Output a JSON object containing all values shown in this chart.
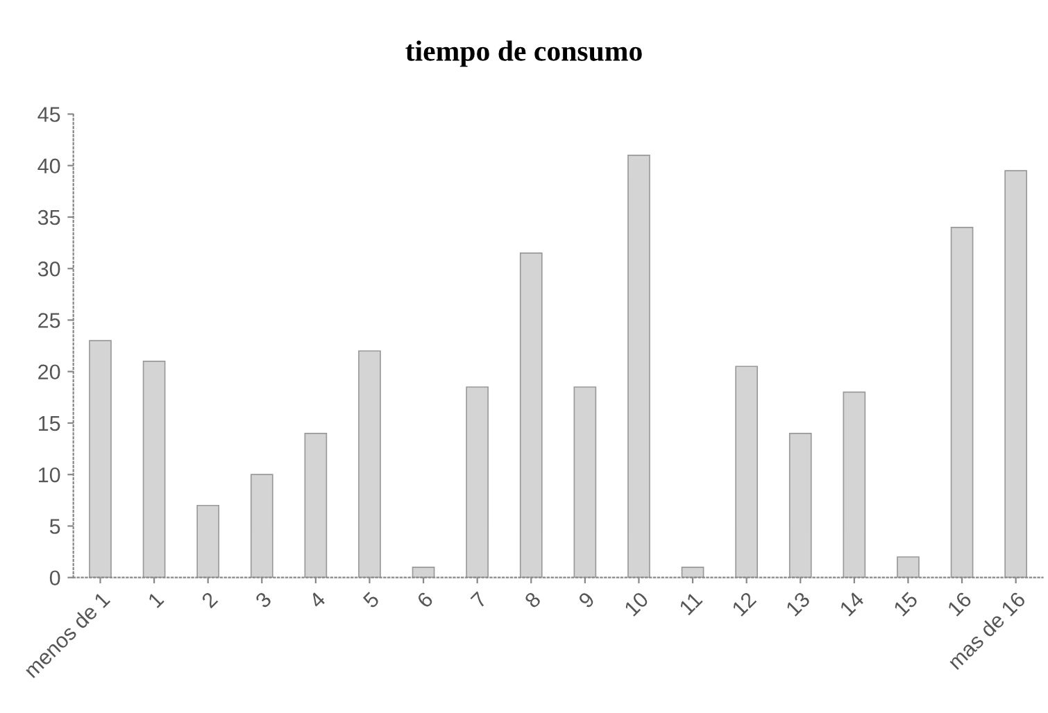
{
  "chart_data": {
    "type": "bar",
    "title": "tiempo de consumo",
    "categories": [
      "menos de 1",
      "1",
      "2",
      "3",
      "4",
      "5",
      "6",
      "7",
      "8",
      "9",
      "10",
      "11",
      "12",
      "13",
      "14",
      "15",
      "16",
      "mas de 16"
    ],
    "values": [
      23,
      21,
      7,
      10,
      14,
      22,
      1,
      18.5,
      31.5,
      18.5,
      41,
      1,
      20.5,
      14,
      18,
      2,
      34,
      39.5
    ],
    "color": "#d4d4d4",
    "ylim": [
      0,
      45
    ],
    "yticks": [
      0,
      5,
      10,
      15,
      20,
      25,
      30,
      35,
      40,
      45
    ],
    "grid": false
  }
}
